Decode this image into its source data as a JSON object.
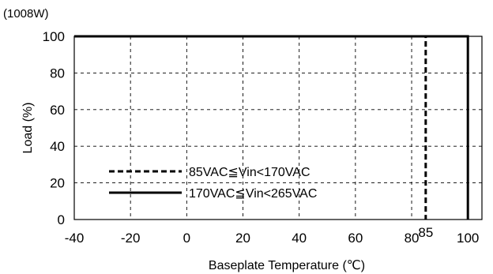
{
  "chart_data": {
    "type": "line",
    "y_caption": "(1008W)",
    "xlabel": "Baseplate Temperature (℃)",
    "ylabel": "Load (%)",
    "xlim": [
      -40,
      105
    ],
    "ylim": [
      0,
      100
    ],
    "x_ticks": [
      "-40",
      "-20",
      "0",
      "20",
      "40",
      "60",
      "80",
      "100"
    ],
    "x_tick_values": [
      -40,
      -20,
      0,
      20,
      40,
      60,
      80,
      100
    ],
    "extra_x_tick": {
      "label": "85",
      "value": 85
    },
    "y_ticks": [
      "0",
      "20",
      "40",
      "60",
      "80",
      "100"
    ],
    "y_tick_values": [
      0,
      20,
      40,
      60,
      80,
      100
    ],
    "grid": true,
    "legend_position": "bottom-left",
    "series": [
      {
        "name": "85VAC≦Vin<170VAC",
        "style": "dashed",
        "color": "#000000",
        "points": [
          [
            -40,
            100
          ],
          [
            85,
            100
          ],
          [
            85,
            0
          ]
        ]
      },
      {
        "name": "170VAC≦Vin<265VAC",
        "style": "solid",
        "color": "#000000",
        "points": [
          [
            -40,
            100
          ],
          [
            100,
            100
          ],
          [
            100,
            0
          ]
        ]
      }
    ]
  }
}
